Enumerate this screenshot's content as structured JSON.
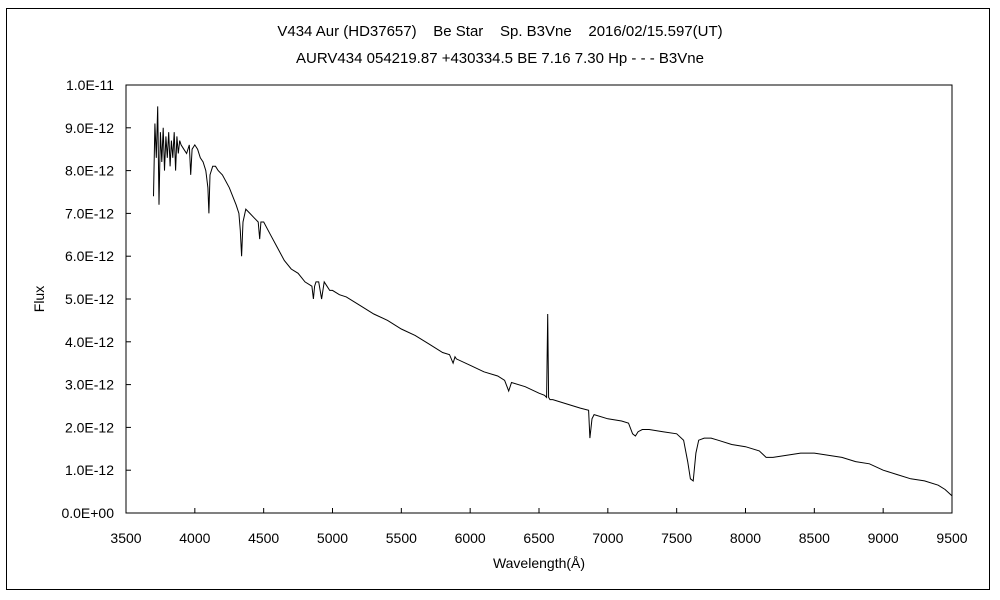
{
  "chart_data": {
    "type": "line",
    "title": "V434 Aur (HD37657)    Be Star    Sp. B3Vne    2016/02/15.597(UT)",
    "subtitle": "AURV434 054219.87 +430334.5 BE 7.16 7.30 Hp - - - B3Vne",
    "xlabel": "Wavelength(Å)",
    "ylabel": "Flux",
    "xlim": [
      3500,
      9500
    ],
    "ylim": [
      0,
      1e-11
    ],
    "x_ticks": [
      3500,
      4000,
      4500,
      5000,
      5500,
      6000,
      6500,
      7000,
      7500,
      8000,
      8500,
      9000,
      9500
    ],
    "x_tick_labels": [
      "3500",
      "4000",
      "4500",
      "5000",
      "5500",
      "6000",
      "6500",
      "7000",
      "7500",
      "8000",
      "8500",
      "9000",
      "9500"
    ],
    "y_ticks": [
      0,
      1e-12,
      2e-12,
      3e-12,
      4e-12,
      5e-12,
      6e-12,
      7e-12,
      8e-12,
      9e-12,
      1e-11
    ],
    "y_tick_labels": [
      "0.0E+00",
      "1.0E-12",
      "2.0E-12",
      "3.0E-12",
      "4.0E-12",
      "5.0E-12",
      "6.0E-12",
      "7.0E-12",
      "8.0E-12",
      "9.0E-12",
      "1.0E-11"
    ],
    "grid": false,
    "legend": "none",
    "line_color": "#000000",
    "series": [
      {
        "x": [
          3700,
          3710,
          3720,
          3730,
          3740,
          3750,
          3760,
          3770,
          3780,
          3790,
          3800,
          3810,
          3820,
          3830,
          3840,
          3850,
          3860,
          3870,
          3880,
          3890,
          3900,
          3920,
          3940,
          3960,
          3970,
          3980,
          4000,
          4020,
          4040,
          4060,
          4080,
          4095,
          4102,
          4110,
          4130,
          4150,
          4170,
          4200,
          4250,
          4300,
          4320,
          4330,
          4340,
          4350,
          4370,
          4400,
          4430,
          4460,
          4471,
          4480,
          4500,
          4550,
          4600,
          4650,
          4700,
          4750,
          4800,
          4850,
          4861,
          4870,
          4880,
          4900,
          4921,
          4940,
          4960,
          4980,
          5000,
          5050,
          5100,
          5200,
          5300,
          5400,
          5500,
          5600,
          5700,
          5800,
          5850,
          5876,
          5890,
          5900,
          6000,
          6100,
          6200,
          6250,
          6280,
          6300,
          6400,
          6500,
          6540,
          6555,
          6563,
          6570,
          6580,
          6600,
          6700,
          6800,
          6860,
          6870,
          6885,
          6900,
          7000,
          7100,
          7150,
          7180,
          7200,
          7220,
          7250,
          7300,
          7400,
          7500,
          7550,
          7580,
          7600,
          7620,
          7640,
          7660,
          7700,
          7750,
          7800,
          7900,
          8000,
          8100,
          8150,
          8200,
          8300,
          8400,
          8500,
          8600,
          8700,
          8800,
          8900,
          9000,
          9100,
          9200,
          9300,
          9400,
          9450,
          9500
        ],
        "values": [
          7.4e-12,
          9.1e-12,
          8.3e-12,
          9.5e-12,
          7.2e-12,
          8.9e-12,
          8.2e-12,
          9e-12,
          8e-12,
          8.8e-12,
          8.3e-12,
          8.9e-12,
          8.1e-12,
          8.7e-12,
          8.3e-12,
          8.9e-12,
          8e-12,
          8.8e-12,
          8.4e-12,
          8.7e-12,
          8.6e-12,
          8.5e-12,
          8.4e-12,
          8.6e-12,
          7.9e-12,
          8.5e-12,
          8.6e-12,
          8.5e-12,
          8.3e-12,
          8.2e-12,
          8e-12,
          7.6e-12,
          7e-12,
          7.9e-12,
          8.1e-12,
          8.1e-12,
          8e-12,
          7.9e-12,
          7.6e-12,
          7.2e-12,
          7e-12,
          6.6e-12,
          6e-12,
          6.8e-12,
          7.1e-12,
          7e-12,
          6.9e-12,
          6.8e-12,
          6.4e-12,
          6.8e-12,
          6.8e-12,
          6.5e-12,
          6.2e-12,
          5.9e-12,
          5.7e-12,
          5.6e-12,
          5.4e-12,
          5.3e-12,
          5e-12,
          5.3e-12,
          5.4e-12,
          5.4e-12,
          5e-12,
          5.4e-12,
          5.3e-12,
          5.2e-12,
          5.2e-12,
          5.1e-12,
          5.05e-12,
          4.85e-12,
          4.65e-12,
          4.5e-12,
          4.3e-12,
          4.15e-12,
          3.95e-12,
          3.75e-12,
          3.7e-12,
          3.5e-12,
          3.65e-12,
          3.6e-12,
          3.45e-12,
          3.3e-12,
          3.2e-12,
          3.1e-12,
          2.85e-12,
          3.05e-12,
          2.95e-12,
          2.8e-12,
          2.75e-12,
          2.7e-12,
          4.65e-12,
          2.7e-12,
          2.65e-12,
          2.65e-12,
          2.55e-12,
          2.45e-12,
          2.4e-12,
          1.75e-12,
          2.2e-12,
          2.3e-12,
          2.2e-12,
          2.15e-12,
          2.1e-12,
          1.85e-12,
          1.8e-12,
          1.9e-12,
          1.95e-12,
          1.95e-12,
          1.9e-12,
          1.85e-12,
          1.7e-12,
          1.2e-12,
          8e-13,
          7.5e-13,
          1.4e-12,
          1.7e-12,
          1.75e-12,
          1.75e-12,
          1.7e-12,
          1.6e-12,
          1.55e-12,
          1.45e-12,
          1.3e-12,
          1.3e-12,
          1.35e-12,
          1.4e-12,
          1.4e-12,
          1.35e-12,
          1.3e-12,
          1.2e-12,
          1.15e-12,
          1e-12,
          9e-13,
          8e-13,
          7.5e-13,
          6.5e-13,
          5.5e-13,
          4e-13
        ]
      }
    ]
  }
}
